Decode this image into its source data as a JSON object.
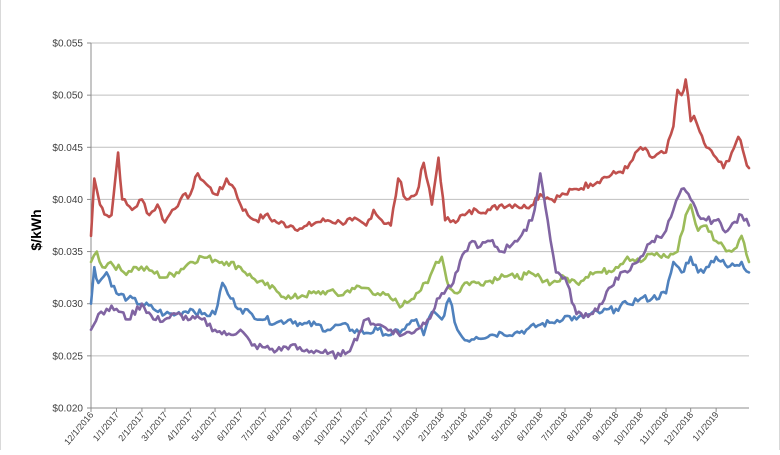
{
  "chart_data": {
    "type": "line",
    "title": "",
    "xlabel": "",
    "ylabel": "$/kWh",
    "ylim": [
      0.02,
      0.055
    ],
    "y_tick_labels": [
      "$0.020",
      "$0.025",
      "$0.030",
      "$0.035",
      "$0.040",
      "$0.045",
      "$0.050",
      "$0.055"
    ],
    "x_tick_labels": [
      "12/1/2016",
      "1/1/2017",
      "2/1/2017",
      "3/1/2017",
      "4/1/2017",
      "5/1/2017",
      "6/1/2017",
      "7/1/2017",
      "8/1/2017",
      "9/1/2017",
      "10/1/2017",
      "11/1/2017",
      "12/1/2017",
      "1/1/2018",
      "2/1/2018",
      "3/1/2018",
      "4/1/2018",
      "5/1/2018",
      "6/1/2018",
      "7/1/2018",
      "8/1/2018",
      "9/1/2018",
      "10/1/2018",
      "11/1/2018",
      "12/1/2018",
      "1/1/2019"
    ],
    "xlim": [
      "12/1/2016",
      "2/10/2019"
    ],
    "grid": true,
    "legend": "none",
    "colors": {
      "red": "#c0504d",
      "green": "#9bbb59",
      "blue": "#4f81bd",
      "purple": "#8064a2"
    },
    "series": [
      {
        "color": "red",
        "x": [
          "12/1/2016",
          "12/5/2016",
          "12/12/2016",
          "12/20/2016",
          "12/26/2016",
          "1/3/2017",
          "1/8/2017",
          "1/14/2017",
          "1/20/2017",
          "2/1/2017",
          "2/10/2017",
          "2/20/2017",
          "3/1/2017",
          "3/10/2017",
          "3/20/2017",
          "4/1/2017",
          "4/10/2017",
          "4/20/2017",
          "5/1/2017",
          "5/10/2017",
          "5/15/2017",
          "5/25/2017",
          "6/1/2017",
          "6/10/2017",
          "6/20/2017",
          "7/1/2017",
          "7/15/2017",
          "8/1/2017",
          "8/15/2017",
          "9/1/2017",
          "9/15/2017",
          "10/1/2017",
          "10/15/2017",
          "11/1/2017",
          "11/10/2017",
          "11/20/2017",
          "12/1/2017",
          "12/10/2017",
          "12/20/2017",
          "1/1/2018",
          "1/10/2018",
          "1/20/2018",
          "1/28/2018",
          "2/5/2018",
          "2/15/2018",
          "3/1/2018",
          "3/15/2018",
          "4/1/2018",
          "4/15/2018",
          "5/1/2018",
          "5/15/2018",
          "6/1/2018",
          "6/15/2018",
          "7/1/2018",
          "7/15/2018",
          "8/1/2018",
          "8/15/2018",
          "9/1/2018",
          "9/15/2018",
          "10/1/2018",
          "10/15/2018",
          "11/1/2018",
          "11/10/2018",
          "11/15/2018",
          "11/20/2018",
          "11/25/2018",
          "12/1/2018",
          "12/5/2018",
          "12/12/2018",
          "12/20/2018",
          "1/1/2019",
          "1/10/2019",
          "1/20/2019",
          "1/28/2019",
          "2/5/2019",
          "2/10/2019"
        ],
        "y": [
          0.0365,
          0.042,
          0.0395,
          0.0385,
          0.0385,
          0.0445,
          0.04,
          0.0395,
          0.039,
          0.04,
          0.0385,
          0.0395,
          0.0378,
          0.039,
          0.04,
          0.0405,
          0.0425,
          0.0415,
          0.0405,
          0.041,
          0.042,
          0.041,
          0.0395,
          0.0385,
          0.038,
          0.0385,
          0.0378,
          0.0375,
          0.0372,
          0.0378,
          0.038,
          0.0378,
          0.038,
          0.0375,
          0.039,
          0.038,
          0.0375,
          0.042,
          0.04,
          0.0405,
          0.0435,
          0.0395,
          0.044,
          0.038,
          0.038,
          0.0385,
          0.039,
          0.039,
          0.0395,
          0.0395,
          0.0392,
          0.0405,
          0.04,
          0.0405,
          0.041,
          0.0415,
          0.042,
          0.0425,
          0.043,
          0.045,
          0.044,
          0.0445,
          0.047,
          0.0505,
          0.05,
          0.0515,
          0.0475,
          0.048,
          0.0465,
          0.045,
          0.044,
          0.043,
          0.0445,
          0.046,
          0.044,
          0.043
        ]
      },
      {
        "color": "green",
        "x": [
          "12/1/2016",
          "12/8/2016",
          "12/15/2016",
          "12/25/2016",
          "1/10/2017",
          "1/25/2017",
          "2/10/2017",
          "3/1/2017",
          "3/15/2017",
          "4/1/2017",
          "4/15/2017",
          "5/1/2017",
          "5/15/2017",
          "6/1/2017",
          "6/15/2017",
          "7/1/2017",
          "7/15/2017",
          "8/1/2017",
          "8/15/2017",
          "9/1/2017",
          "9/15/2017",
          "10/1/2017",
          "10/15/2017",
          "11/1/2017",
          "11/15/2017",
          "12/1/2017",
          "12/15/2017",
          "1/1/2018",
          "1/15/2018",
          "1/25/2018",
          "2/1/2018",
          "2/10/2018",
          "2/20/2018",
          "3/1/2018",
          "3/15/2018",
          "4/1/2018",
          "4/15/2018",
          "5/1/2018",
          "5/15/2018",
          "6/1/2018",
          "6/15/2018",
          "7/1/2018",
          "7/15/2018",
          "8/1/2018",
          "8/15/2018",
          "9/1/2018",
          "9/15/2018",
          "10/1/2018",
          "10/15/2018",
          "11/1/2018",
          "11/15/2018",
          "11/25/2018",
          "12/1/2018",
          "12/10/2018",
          "12/20/2018",
          "1/1/2019",
          "1/10/2019",
          "1/20/2019",
          "2/1/2019",
          "2/10/2019"
        ],
        "y": [
          0.034,
          0.035,
          0.0335,
          0.034,
          0.033,
          0.0335,
          0.0332,
          0.0325,
          0.033,
          0.034,
          0.0345,
          0.0342,
          0.034,
          0.0335,
          0.0325,
          0.0318,
          0.0312,
          0.0305,
          0.0308,
          0.031,
          0.0312,
          0.0308,
          0.0315,
          0.0315,
          0.031,
          0.0305,
          0.0298,
          0.031,
          0.032,
          0.034,
          0.0345,
          0.0315,
          0.031,
          0.032,
          0.032,
          0.0322,
          0.0328,
          0.0325,
          0.0328,
          0.0325,
          0.032,
          0.0325,
          0.032,
          0.033,
          0.033,
          0.0335,
          0.0345,
          0.034,
          0.0348,
          0.0345,
          0.035,
          0.0385,
          0.0395,
          0.037,
          0.0375,
          0.036,
          0.0355,
          0.035,
          0.0365,
          0.034
        ]
      },
      {
        "color": "blue",
        "x": [
          "12/1/2016",
          "12/5/2016",
          "12/10/2016",
          "12/20/2016",
          "1/1/2017",
          "1/15/2017",
          "2/1/2017",
          "2/15/2017",
          "3/1/2017",
          "3/15/2017",
          "4/1/2017",
          "4/15/2017",
          "5/1/2017",
          "5/10/2017",
          "5/20/2017",
          "6/1/2017",
          "6/15/2017",
          "7/1/2017",
          "7/15/2017",
          "8/1/2017",
          "8/15/2017",
          "9/1/2017",
          "9/15/2017",
          "10/1/2017",
          "10/15/2017",
          "11/1/2017",
          "11/15/2017",
          "12/1/2017",
          "12/15/2017",
          "1/1/2018",
          "1/10/2018",
          "1/20/2018",
          "2/1/2018",
          "2/10/2018",
          "2/20/2018",
          "3/1/2018",
          "3/15/2018",
          "4/1/2018",
          "4/15/2018",
          "5/1/2018",
          "5/15/2018",
          "6/1/2018",
          "6/15/2018",
          "7/1/2018",
          "7/15/2018",
          "8/1/2018",
          "8/15/2018",
          "9/1/2018",
          "9/15/2018",
          "10/1/2018",
          "10/15/2018",
          "11/1/2018",
          "11/10/2018",
          "11/20/2018",
          "12/1/2018",
          "12/10/2018",
          "12/20/2018",
          "1/1/2019",
          "1/15/2019",
          "2/1/2019",
          "2/10/2019"
        ],
        "y": [
          0.03,
          0.0335,
          0.032,
          0.033,
          0.031,
          0.0305,
          0.03,
          0.0295,
          0.029,
          0.029,
          0.0295,
          0.029,
          0.029,
          0.032,
          0.0305,
          0.0295,
          0.029,
          0.0285,
          0.0282,
          0.0285,
          0.028,
          0.028,
          0.0275,
          0.028,
          0.0275,
          0.0272,
          0.0275,
          0.027,
          0.0275,
          0.0285,
          0.027,
          0.0292,
          0.0285,
          0.0305,
          0.0275,
          0.0265,
          0.0268,
          0.027,
          0.0272,
          0.0272,
          0.0275,
          0.028,
          0.0282,
          0.0288,
          0.0285,
          0.029,
          0.0292,
          0.0295,
          0.03,
          0.0305,
          0.0305,
          0.031,
          0.034,
          0.033,
          0.0345,
          0.033,
          0.0335,
          0.0345,
          0.0335,
          0.034,
          0.033
        ]
      },
      {
        "color": "purple",
        "x": [
          "12/1/2016",
          "12/10/2016",
          "12/20/2016",
          "1/1/2017",
          "1/15/2017",
          "2/1/2017",
          "2/15/2017",
          "3/1/2017",
          "3/15/2017",
          "4/1/2017",
          "4/15/2017",
          "5/1/2017",
          "5/15/2017",
          "6/1/2017",
          "6/15/2017",
          "7/1/2017",
          "7/15/2017",
          "8/1/2017",
          "8/15/2017",
          "9/1/2017",
          "9/15/2017",
          "10/1/2017",
          "10/15/2017",
          "11/1/2017",
          "11/15/2017",
          "12/1/2017",
          "12/15/2017",
          "1/1/2018",
          "1/15/2018",
          "2/1/2018",
          "2/15/2018",
          "3/1/2018",
          "3/10/2018",
          "3/20/2018",
          "4/1/2018",
          "4/15/2018",
          "5/1/2018",
          "5/15/2018",
          "5/25/2018",
          "6/1/2018",
          "6/10/2018",
          "6/20/2018",
          "7/1/2018",
          "7/15/2018",
          "8/1/2018",
          "8/15/2018",
          "9/1/2018",
          "9/15/2018",
          "10/1/2018",
          "10/15/2018",
          "11/1/2018",
          "11/10/2018",
          "11/20/2018",
          "12/1/2018",
          "12/10/2018",
          "12/20/2018",
          "1/1/2019",
          "1/15/2019",
          "2/1/2019",
          "2/10/2019"
        ],
        "y": [
          0.0275,
          0.029,
          0.0295,
          0.0295,
          0.0285,
          0.03,
          0.0285,
          0.0285,
          0.029,
          0.0285,
          0.0285,
          0.0275,
          0.027,
          0.0275,
          0.026,
          0.0258,
          0.0255,
          0.026,
          0.0255,
          0.0255,
          0.0252,
          0.025,
          0.026,
          0.0285,
          0.028,
          0.0275,
          0.027,
          0.0275,
          0.0285,
          0.031,
          0.032,
          0.035,
          0.036,
          0.0355,
          0.036,
          0.035,
          0.036,
          0.037,
          0.039,
          0.0425,
          0.038,
          0.033,
          0.0325,
          0.029,
          0.029,
          0.03,
          0.0325,
          0.033,
          0.0345,
          0.036,
          0.037,
          0.039,
          0.041,
          0.04,
          0.0385,
          0.038,
          0.038,
          0.037,
          0.0385,
          0.0375
        ]
      }
    ]
  }
}
